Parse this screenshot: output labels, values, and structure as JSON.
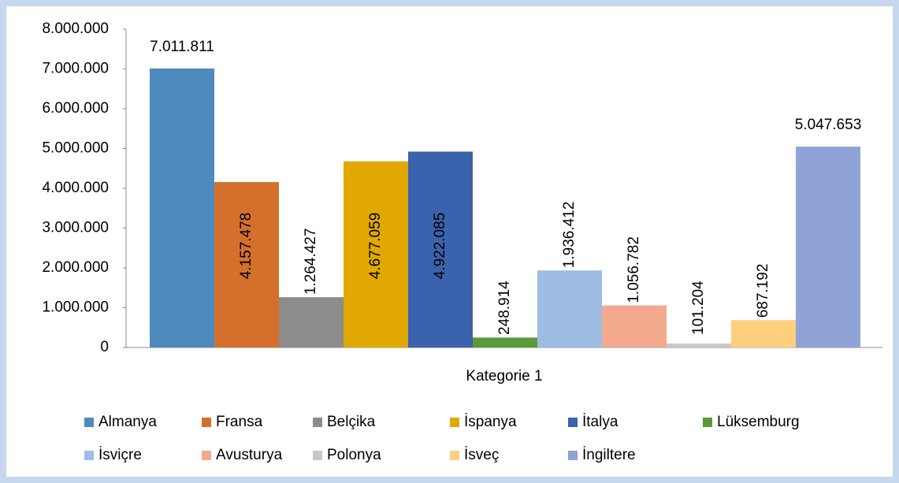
{
  "chart_data": {
    "type": "bar",
    "categories": [
      "Kategorie 1"
    ],
    "series": [
      {
        "name": "Almanya",
        "color": "#4e8abe",
        "values": [
          7011811
        ],
        "value_labels": [
          "7.011.811"
        ]
      },
      {
        "name": "Fransa",
        "color": "#d4702b",
        "values": [
          4157478
        ],
        "value_labels": [
          "4.157.478"
        ]
      },
      {
        "name": "Belçika",
        "color": "#8c8c8c",
        "values": [
          1264427
        ],
        "value_labels": [
          "1.264.427"
        ]
      },
      {
        "name": "İspanya",
        "color": "#e0a800",
        "values": [
          4677059
        ],
        "value_labels": [
          "4.677.059"
        ]
      },
      {
        "name": "İtalya",
        "color": "#3a62ad",
        "values": [
          4922085
        ],
        "value_labels": [
          "4.922.085"
        ]
      },
      {
        "name": "Lüksemburg",
        "color": "#5a9a3a",
        "values": [
          248914
        ],
        "value_labels": [
          "248.914"
        ]
      },
      {
        "name": "İsviçre",
        "color": "#9dbde3",
        "values": [
          1936412
        ],
        "value_labels": [
          "1.936.412"
        ]
      },
      {
        "name": "Avusturya",
        "color": "#f2a98e",
        "values": [
          1056782
        ],
        "value_labels": [
          "1.056.782"
        ]
      },
      {
        "name": "Polonya",
        "color": "#c8c8c8",
        "values": [
          101204
        ],
        "value_labels": [
          "101.204"
        ]
      },
      {
        "name": "İsveç",
        "color": "#fdcf7e",
        "values": [
          687192
        ],
        "value_labels": [
          "687.192"
        ]
      },
      {
        "name": "İngiltere",
        "color": "#8fa3d6",
        "values": [
          5047653
        ],
        "value_labels": [
          "5.047.653"
        ]
      }
    ],
    "ylim": [
      0,
      8000000
    ],
    "yticks": [
      0,
      {
        "value": 1000000,
        "label": "1.000.000"
      },
      {
        "value": 2000000,
        "label": "2.000.000"
      },
      {
        "value": 3000000,
        "label": "3.000.000"
      },
      {
        "value": 4000000,
        "label": "4.000.000"
      },
      {
        "value": 5000000,
        "label": "5.000.000"
      },
      {
        "value": 6000000,
        "label": "6.000.000"
      },
      {
        "value": 7000000,
        "label": "7.000.000"
      },
      {
        "value": 8000000,
        "label": "8.000.000"
      }
    ],
    "legend": "bottom"
  }
}
